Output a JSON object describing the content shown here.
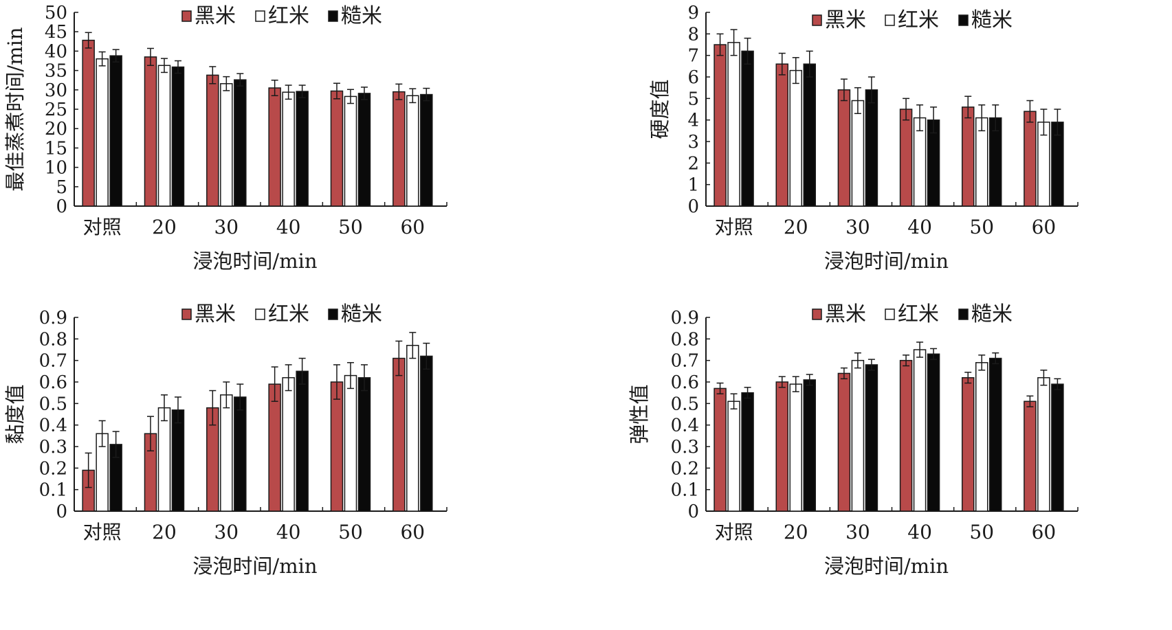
{
  "colors": {
    "黑米": "#b84a4a",
    "红米": "#ffffff",
    "糙米": "#0a0a0a",
    "axis": "#1a1a1a"
  },
  "chart_data": [
    {
      "type": "bar",
      "categories": [
        "对照",
        "20",
        "30",
        "40",
        "50",
        "60"
      ],
      "series": [
        {
          "name": "黑米",
          "values": [
            42.8,
            38.5,
            33.8,
            30.5,
            29.7,
            29.5
          ],
          "errors": [
            2.0,
            2.2,
            2.2,
            2.0,
            2.0,
            2.0
          ]
        },
        {
          "name": "红米",
          "values": [
            38.0,
            36.3,
            31.6,
            29.4,
            28.3,
            28.5
          ],
          "errors": [
            1.8,
            1.8,
            1.8,
            1.8,
            1.8,
            1.8
          ]
        },
        {
          "name": "糙米",
          "values": [
            38.8,
            35.9,
            32.6,
            29.6,
            29.1,
            28.8
          ],
          "errors": [
            1.6,
            1.6,
            1.6,
            1.6,
            1.6,
            1.6
          ]
        }
      ],
      "xlabel": "浸泡时间/min",
      "ylabel": "最佳蒸煮时间/min",
      "ylim": [
        0,
        50
      ],
      "yticks": [
        "0",
        "5",
        "10",
        "15",
        "20",
        "25",
        "30",
        "35",
        "40",
        "45",
        "50"
      ],
      "legend": "top-center"
    },
    {
      "type": "bar",
      "categories": [
        "对照",
        "20",
        "30",
        "40",
        "50",
        "60"
      ],
      "series": [
        {
          "name": "黑米",
          "values": [
            7.5,
            6.6,
            5.4,
            4.5,
            4.6,
            4.4
          ],
          "errors": [
            0.5,
            0.5,
            0.5,
            0.5,
            0.5,
            0.5
          ]
        },
        {
          "name": "红米",
          "values": [
            7.6,
            6.3,
            4.9,
            4.1,
            4.1,
            3.9
          ],
          "errors": [
            0.6,
            0.6,
            0.6,
            0.6,
            0.6,
            0.6
          ]
        },
        {
          "name": "糙米",
          "values": [
            7.2,
            6.6,
            5.4,
            4.0,
            4.1,
            3.9
          ],
          "errors": [
            0.6,
            0.6,
            0.6,
            0.6,
            0.6,
            0.6
          ]
        }
      ],
      "xlabel": "浸泡时间/min",
      "ylabel": "硬度值",
      "ylim": [
        0,
        9
      ],
      "yticks": [
        "0",
        "1",
        "2",
        "3",
        "4",
        "5",
        "6",
        "7",
        "8",
        "9"
      ],
      "legend": "top-center"
    },
    {
      "type": "bar",
      "categories": [
        "对照",
        "20",
        "30",
        "40",
        "50",
        "60"
      ],
      "series": [
        {
          "name": "黑米",
          "values": [
            0.19,
            0.36,
            0.48,
            0.59,
            0.6,
            0.71
          ],
          "errors": [
            0.08,
            0.08,
            0.08,
            0.08,
            0.08,
            0.08
          ]
        },
        {
          "name": "红米",
          "values": [
            0.36,
            0.48,
            0.54,
            0.62,
            0.63,
            0.77
          ],
          "errors": [
            0.06,
            0.06,
            0.06,
            0.06,
            0.06,
            0.06
          ]
        },
        {
          "name": "糙米",
          "values": [
            0.31,
            0.47,
            0.53,
            0.65,
            0.62,
            0.72
          ],
          "errors": [
            0.06,
            0.06,
            0.06,
            0.06,
            0.06,
            0.06
          ]
        }
      ],
      "xlabel": "浸泡时间/min",
      "ylabel": "黏度值",
      "ylim": [
        0,
        0.9
      ],
      "yticks": [
        "0",
        "0.1",
        "0.2",
        "0.3",
        "0.4",
        "0.5",
        "0.6",
        "0.7",
        "0.8",
        "0.9"
      ],
      "legend": "top-center"
    },
    {
      "type": "bar",
      "categories": [
        "对照",
        "20",
        "30",
        "40",
        "50",
        "60"
      ],
      "series": [
        {
          "name": "黑米",
          "values": [
            0.57,
            0.6,
            0.64,
            0.7,
            0.62,
            0.51
          ],
          "errors": [
            0.025,
            0.025,
            0.025,
            0.025,
            0.025,
            0.025
          ]
        },
        {
          "name": "红米",
          "values": [
            0.51,
            0.59,
            0.7,
            0.75,
            0.69,
            0.62
          ],
          "errors": [
            0.035,
            0.035,
            0.035,
            0.035,
            0.035,
            0.035
          ]
        },
        {
          "name": "糙米",
          "values": [
            0.55,
            0.61,
            0.68,
            0.73,
            0.71,
            0.59
          ],
          "errors": [
            0.025,
            0.025,
            0.025,
            0.025,
            0.025,
            0.025
          ]
        }
      ],
      "xlabel": "浸泡时间/min",
      "ylabel": "弹性值",
      "ylim": [
        0,
        0.9
      ],
      "yticks": [
        "0",
        "0.1",
        "0.2",
        "0.3",
        "0.4",
        "0.5",
        "0.6",
        "0.7",
        "0.8",
        "0.9"
      ],
      "legend": "top-center"
    }
  ]
}
